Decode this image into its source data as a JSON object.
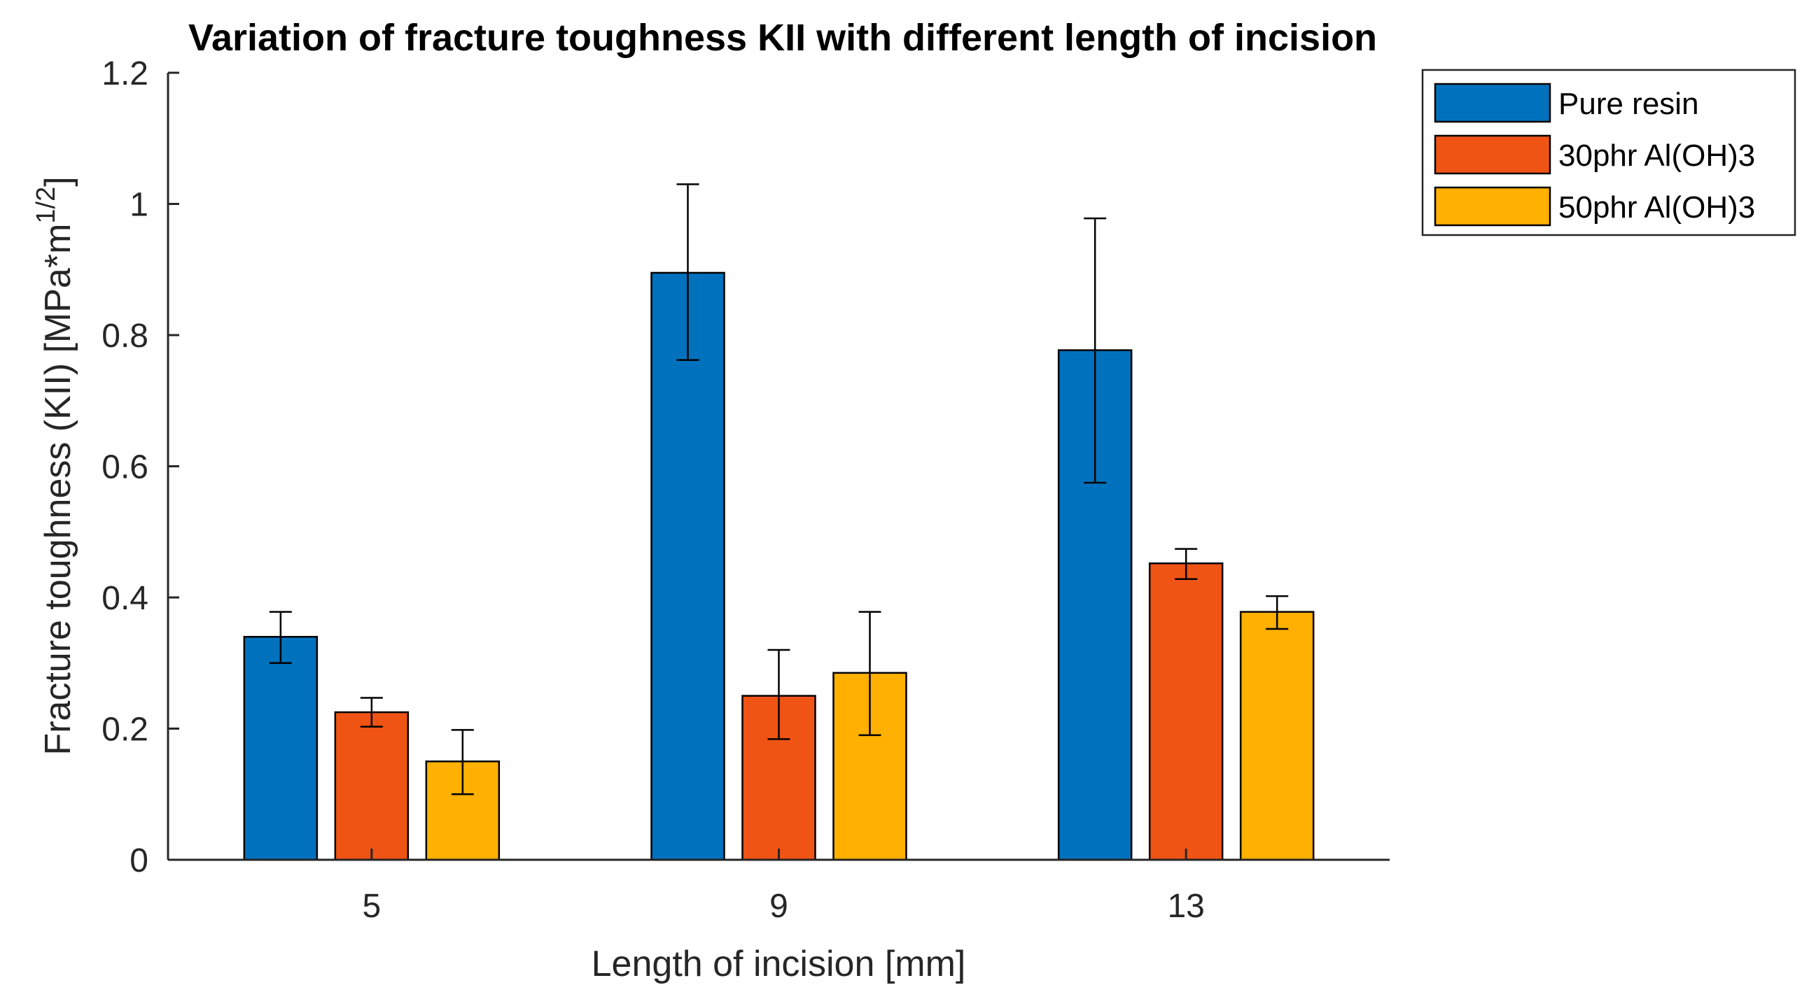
{
  "chart_data": {
    "type": "bar",
    "title": "Variation of fracture toughness KII with different length of incision",
    "xlabel": "Length of incision [mm]",
    "ylabel": "Fracture toughness (KII) [MPa*m",
    "ylabel_superscript": "1/2",
    "ylabel_suffix": "]",
    "categories": [
      "5",
      "9",
      "13"
    ],
    "ylim": [
      0,
      1.2
    ],
    "yticks": [
      0,
      0.2,
      0.4,
      0.6,
      0.8,
      1,
      1.2
    ],
    "ytick_labels": [
      "0",
      "0.2",
      "0.4",
      "0.6",
      "0.8",
      "1",
      "1.2"
    ],
    "grid": false,
    "legend_position": "top-right outside",
    "series": [
      {
        "name": "Pure resin",
        "color": "#0072BD",
        "values": [
          0.34,
          0.895,
          0.777
        ],
        "err_low": [
          0.3,
          0.762,
          0.575
        ],
        "err_high": [
          0.378,
          1.03,
          0.978
        ]
      },
      {
        "name": "30phr Al(OH)3",
        "color": "#F05414",
        "values": [
          0.225,
          0.25,
          0.452
        ],
        "err_low": [
          0.203,
          0.184,
          0.428
        ],
        "err_high": [
          0.247,
          0.32,
          0.474
        ]
      },
      {
        "name": "50phr Al(OH)3",
        "color": "#FFB000",
        "values": [
          0.15,
          0.285,
          0.378
        ],
        "err_low": [
          0.1,
          0.19,
          0.352
        ],
        "err_high": [
          0.198,
          0.378,
          0.402
        ]
      }
    ]
  }
}
